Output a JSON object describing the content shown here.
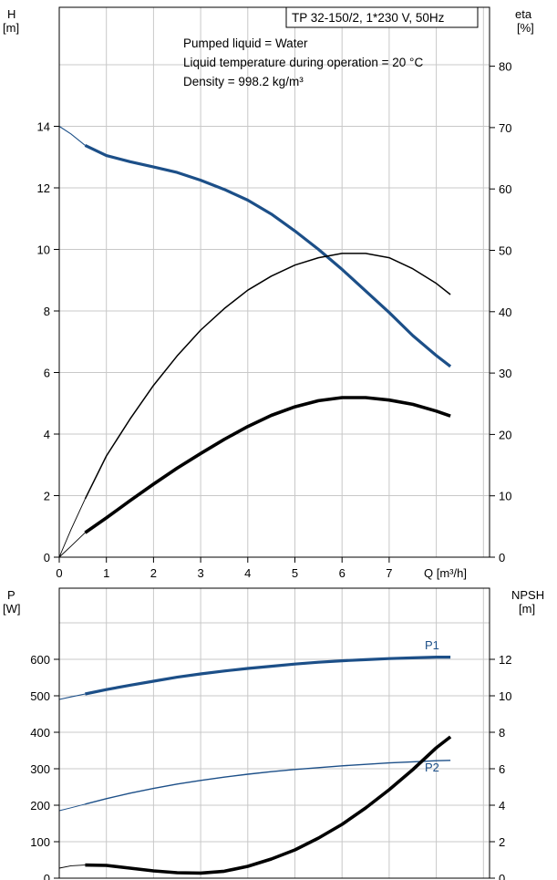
{
  "chart_data": [
    {
      "type": "line",
      "title_box": "TP 32-150/2, 1*230 V, 50Hz",
      "annotations": [
        "Pumped liquid = Water",
        "Liquid temperature during operation = 20 °C",
        "Density = 998.2 kg/m³"
      ],
      "xlabel": "Q [m³/h]",
      "ylabel_left": [
        "H",
        "[m]"
      ],
      "ylabel_right": [
        "eta",
        "[%]"
      ],
      "xlim": [
        0,
        9.3
      ],
      "ylim_left": [
        0,
        18
      ],
      "ylim_right": [
        0,
        90
      ],
      "x_ticks": [
        "0",
        "1",
        "2",
        "3",
        "4",
        "5",
        "6",
        "7"
      ],
      "y_ticks_left": [
        "0",
        "2",
        "4",
        "6",
        "8",
        "10",
        "12",
        "14"
      ],
      "y_ticks_right": [
        "0",
        "10",
        "20",
        "30",
        "40",
        "50",
        "60",
        "70",
        "80"
      ],
      "grid": true,
      "series": [
        {
          "axis": "left",
          "color": "#1c4f88",
          "width": 3.2,
          "thin_width": 1.1,
          "thin_x": [
            0,
            0.25,
            0.55
          ],
          "thin_y": [
            14.0,
            13.75,
            13.38
          ],
          "x": [
            0.55,
            1.0,
            1.5,
            2.0,
            2.5,
            3.0,
            3.5,
            4.0,
            4.5,
            5.0,
            5.5,
            6.0,
            6.5,
            7.0,
            7.5,
            8.0,
            8.3
          ],
          "y": [
            13.38,
            13.05,
            12.85,
            12.68,
            12.5,
            12.25,
            11.95,
            11.6,
            11.15,
            10.6,
            10.0,
            9.35,
            8.65,
            7.95,
            7.2,
            6.55,
            6.2
          ]
        },
        {
          "axis": "right",
          "color": "#000000",
          "width": 1.5,
          "thin_width": 0.9,
          "thin_x": [
            0,
            0.25,
            0.55
          ],
          "thin_y": [
            0,
            4.5,
            9.5
          ],
          "x": [
            0.55,
            1.0,
            1.5,
            2.0,
            2.5,
            3.0,
            3.5,
            4.0,
            4.5,
            5.0,
            5.5,
            6.0,
            6.5,
            7.0,
            7.5,
            8.0,
            8.3
          ],
          "y": [
            9.5,
            16.5,
            22.5,
            28.0,
            32.8,
            37.0,
            40.5,
            43.5,
            45.8,
            47.6,
            48.8,
            49.5,
            49.5,
            48.8,
            47.0,
            44.6,
            42.8
          ]
        },
        {
          "axis": "right",
          "color": "#000000",
          "width": 3.6,
          "thin_width": 0.9,
          "thin_x": [
            0,
            0.25,
            0.55
          ],
          "thin_y": [
            0,
            1.8,
            4.0
          ],
          "x": [
            0.55,
            1.0,
            1.5,
            2.0,
            2.5,
            3.0,
            3.5,
            4.0,
            4.5,
            5.0,
            5.5,
            6.0,
            6.5,
            7.0,
            7.5,
            8.0,
            8.3
          ],
          "y": [
            4.0,
            6.4,
            9.2,
            11.9,
            14.5,
            16.9,
            19.2,
            21.3,
            23.1,
            24.5,
            25.5,
            26.0,
            26.0,
            25.6,
            24.9,
            23.8,
            23.0
          ]
        }
      ]
    },
    {
      "type": "line",
      "ylabel_left": [
        "P",
        "[W]"
      ],
      "ylabel_right": [
        "NPSH",
        "[m]"
      ],
      "xlim": [
        0,
        9.3
      ],
      "ylim_left": [
        0,
        700
      ],
      "ylim_right": [
        0,
        14
      ],
      "y_ticks_left": [
        "0",
        "100",
        "200",
        "300",
        "400",
        "500",
        "600"
      ],
      "y_ticks_right": [
        "0",
        "2",
        "4",
        "6",
        "8",
        "10",
        "12"
      ],
      "grid": true,
      "series": [
        {
          "name": "P1",
          "axis": "left",
          "color": "#1c4f88",
          "width": 3.2,
          "thin_width": 1.1,
          "thin_x": [
            0,
            0.25,
            0.55
          ],
          "thin_y": [
            490,
            497,
            505
          ],
          "x": [
            0.55,
            1.0,
            1.5,
            2.0,
            2.5,
            3.0,
            3.5,
            4.0,
            4.5,
            5.0,
            5.5,
            6.0,
            6.5,
            7.0,
            7.5,
            8.0,
            8.3
          ],
          "y": [
            505,
            517,
            529,
            540,
            551,
            560,
            568,
            575,
            581,
            587,
            592,
            596,
            599,
            602,
            604,
            606,
            606
          ]
        },
        {
          "name": "P2",
          "axis": "left",
          "color": "#1c4f88",
          "width": 1.4,
          "thin_width": 1.0,
          "thin_x": [
            0,
            0.25,
            0.55
          ],
          "thin_y": [
            185,
            193,
            203
          ],
          "x": [
            0.55,
            1.0,
            1.5,
            2.0,
            2.5,
            3.0,
            3.5,
            4.0,
            4.5,
            5.0,
            5.5,
            6.0,
            6.5,
            7.0,
            7.5,
            8.0,
            8.3
          ],
          "y": [
            203,
            218,
            233,
            246,
            258,
            268,
            277,
            285,
            292,
            298,
            303,
            308,
            312,
            316,
            319,
            322,
            323
          ]
        },
        {
          "axis": "right",
          "color": "#000000",
          "width": 3.6,
          "thin_width": 0.9,
          "thin_x": [
            0,
            0.25,
            0.55
          ],
          "thin_y": [
            0.55,
            0.68,
            0.72
          ],
          "x": [
            0.55,
            1.0,
            1.5,
            2.0,
            2.5,
            3.0,
            3.5,
            4.0,
            4.5,
            5.0,
            5.5,
            6.0,
            6.5,
            7.0,
            7.5,
            8.0,
            8.3
          ],
          "y": [
            0.72,
            0.7,
            0.55,
            0.4,
            0.3,
            0.28,
            0.38,
            0.65,
            1.05,
            1.55,
            2.2,
            2.95,
            3.85,
            4.85,
            5.95,
            7.15,
            7.75
          ]
        }
      ]
    }
  ]
}
